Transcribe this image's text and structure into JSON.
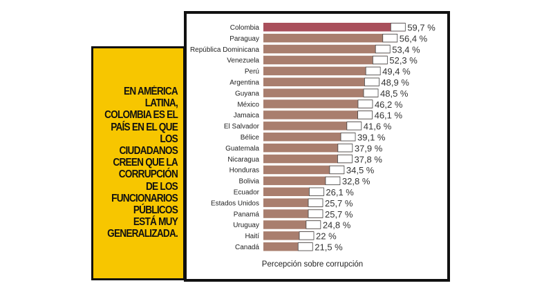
{
  "callout": {
    "lines": [
      "EN AMÉRICA",
      "LATINA,",
      "COLOMBIA ES EL",
      "PAÍS EN EL QUE",
      "LOS CIUDADANOS",
      "CREEN QUE LA",
      "CORRUPCIÓN",
      "DE LOS",
      "FUNCIONARIOS",
      "PÚBLICOS",
      "ESTÁ MUY",
      "GENERALIZADA."
    ]
  },
  "chart_data": {
    "type": "bar",
    "orientation": "horizontal",
    "title": "",
    "xlabel": "Percepción sobre corrupción",
    "ylabel": "",
    "unit": "%",
    "categories": [
      "Colombia",
      "Paraguay",
      "República Dominicana",
      "Venezuela",
      "Perú",
      "Argentina",
      "Guyana",
      "México",
      "Jamaica",
      "El Salvador",
      "Bélice",
      "Guatemala",
      "Nicaragua",
      "Honduras",
      "Bolivia",
      "Ecuador",
      "Estados Unidos",
      "Panamá",
      "Uruguay",
      "Haití",
      "Canadá"
    ],
    "values": [
      59.7,
      56.4,
      53.4,
      52.3,
      49.4,
      48.9,
      48.5,
      46.2,
      46.1,
      41.6,
      39.1,
      37.9,
      37.8,
      34.5,
      32.8,
      26.1,
      25.7,
      25.7,
      24.8,
      22,
      21.5
    ],
    "value_labels": [
      "59,7 %",
      "56,4 %",
      "53,4 %",
      "52,3 %",
      "49,4 %",
      "48,9 %",
      "48,5 %",
      "46,2 %",
      "46,1 %",
      "41,6 %",
      "39,1 %",
      "37,9 %",
      "37,8 %",
      "34,5 %",
      "32,8 %",
      "26,1 %",
      "25,7 %",
      "25,7 %",
      "24,8 %",
      "22 %",
      "21,5 %"
    ],
    "highlight": "Colombia",
    "colors": {
      "bar": "#a97e6e",
      "highlight": "#a94f5b",
      "callout": "#f7c600"
    }
  }
}
